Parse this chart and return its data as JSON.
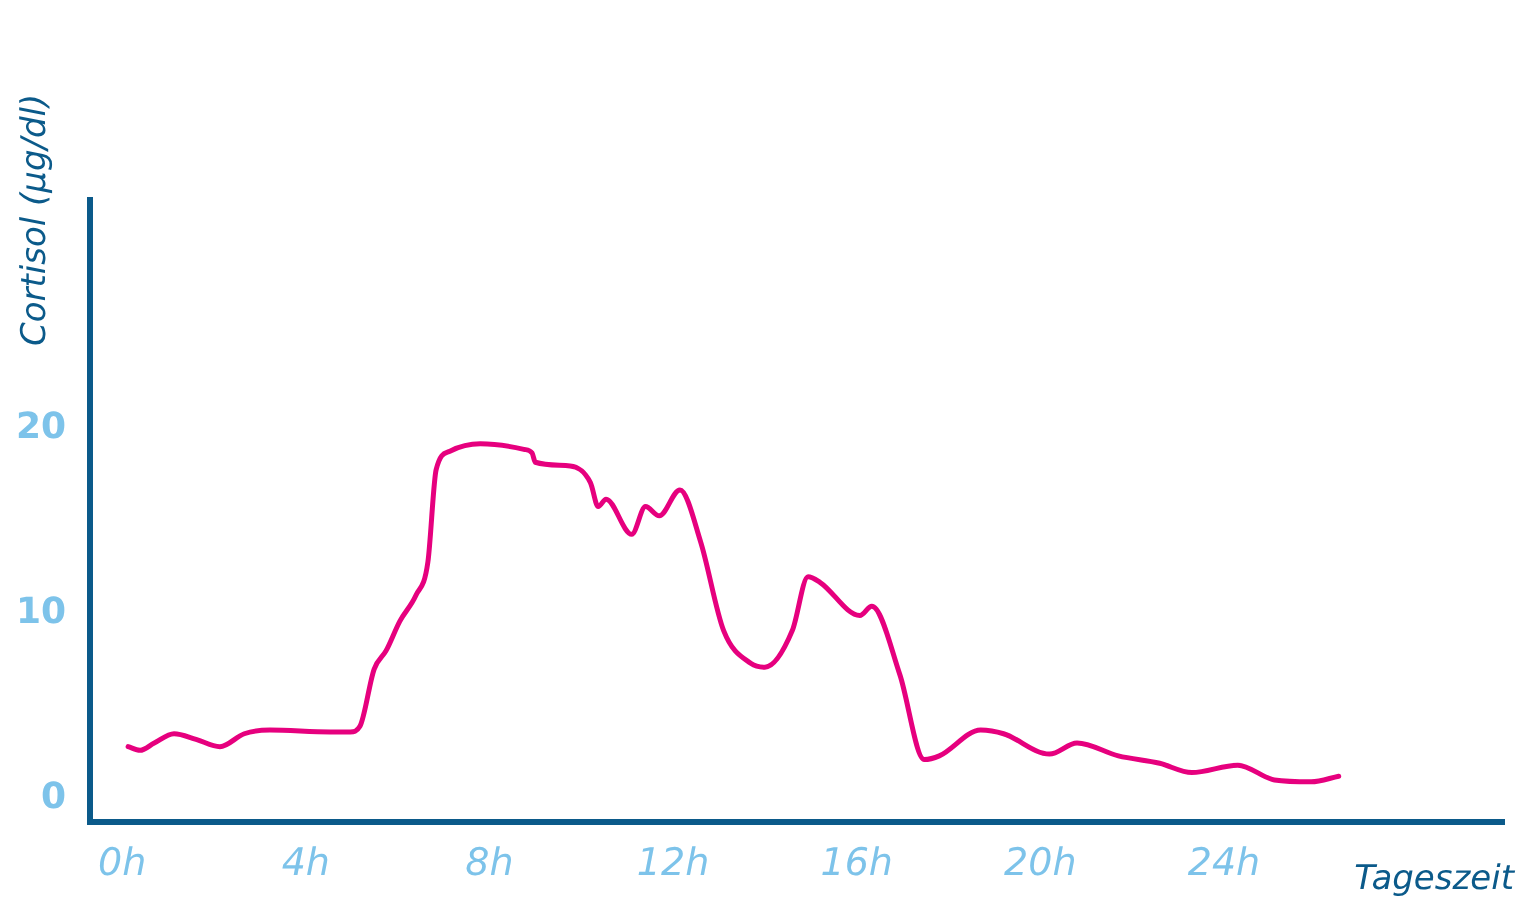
{
  "chart_data": {
    "type": "line",
    "xlabel": "Tageszeit",
    "ylabel": "Cortisol (µg/dl)",
    "x": [
      0.13,
      0.39,
      0.7,
      1.13,
      1.61,
      2.13,
      2.66,
      3.22,
      4.53,
      4.97,
      5.18,
      5.49,
      5.75,
      6.05,
      6.4,
      6.66,
      6.84,
      7.14,
      7.8,
      8.75,
      8.93,
      9.0,
      9.76,
      10.2,
      10.37,
      10.54,
      11.1,
      11.4,
      11.7,
      12.15,
      12.6,
      13.1,
      13.7,
      14.0,
      14.6,
      14.94,
      15.2,
      16.07,
      16.33,
      16.94,
      17.47,
      17.8,
      18.7,
      19.2,
      20.2,
      20.8,
      21.7,
      22.6,
      23.3,
      24.3,
      25.1,
      25.9,
      26.5
    ],
    "series": [
      {
        "color": "#e6007e",
        "values": [
          2.8,
          2.6,
          3.0,
          3.5,
          3.2,
          2.8,
          3.5,
          3.7,
          3.6,
          3.6,
          3.9,
          7.0,
          8.0,
          9.6,
          11.0,
          12.8,
          17.8,
          18.8,
          19.2,
          18.9,
          18.7,
          18.2,
          18.0,
          17.1,
          15.8,
          16.2,
          14.3,
          15.8,
          15.3,
          16.7,
          13.9,
          9.1,
          7.3,
          7.1,
          9.1,
          12.0,
          11.7,
          9.9,
          10.4,
          6.7,
          2.1,
          2.3,
          3.7,
          3.5,
          2.4,
          3.0,
          2.3,
          1.9,
          1.4,
          1.8,
          1.0,
          0.9,
          1.2
        ]
      }
    ],
    "xlim": [
      -0.7,
      30.1
    ],
    "ylim": [
      -1.3,
      32.4
    ],
    "xticks": [
      {
        "value": 0,
        "label": "0h"
      },
      {
        "value": 4,
        "label": "4h"
      },
      {
        "value": 8,
        "label": "8h"
      },
      {
        "value": 12,
        "label": "12h"
      },
      {
        "value": 16,
        "label": "16h"
      },
      {
        "value": 20,
        "label": "20h"
      },
      {
        "value": 24,
        "label": "24h"
      }
    ],
    "yticks": [
      0,
      10,
      20
    ],
    "grid": false,
    "legend": false,
    "marker": "none",
    "line_style": "solid"
  }
}
